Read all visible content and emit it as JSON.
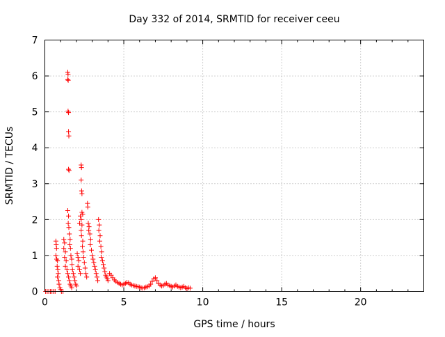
{
  "chart_data": {
    "type": "scatter",
    "title": "Day 332 of 2014, SRMTID for receiver ceeu",
    "xlabel": "GPS time / hours",
    "ylabel": "SRMTID / TECUs",
    "xlim": [
      0,
      24
    ],
    "ylim": [
      0,
      7
    ],
    "xticks": [
      0,
      5,
      10,
      15,
      20
    ],
    "yticks": [
      0,
      1,
      2,
      3,
      4,
      5,
      6,
      7
    ],
    "grid": true,
    "marker": "+",
    "series": [
      {
        "name": "SRMTID",
        "color": "#ff0000",
        "points": [
          [
            0.05,
            0
          ],
          [
            0.15,
            0
          ],
          [
            0.25,
            0
          ],
          [
            0.35,
            0
          ],
          [
            0.45,
            0
          ],
          [
            0.55,
            0
          ],
          [
            0.65,
            0
          ],
          [
            1.05,
            0
          ],
          [
            1.15,
            0
          ],
          [
            0.7,
            1.4
          ],
          [
            0.72,
            1.3
          ],
          [
            0.74,
            1.2
          ],
          [
            0.7,
            1.0
          ],
          [
            0.75,
            0.9
          ],
          [
            0.8,
            0.85
          ],
          [
            0.78,
            0.7
          ],
          [
            0.82,
            0.6
          ],
          [
            0.85,
            0.5
          ],
          [
            0.8,
            0.4
          ],
          [
            0.88,
            0.3
          ],
          [
            0.9,
            0.2
          ],
          [
            0.95,
            0.1
          ],
          [
            1.0,
            0.05
          ],
          [
            1.2,
            1.45
          ],
          [
            1.25,
            1.35
          ],
          [
            1.2,
            1.2
          ],
          [
            1.3,
            1.1
          ],
          [
            1.25,
            0.95
          ],
          [
            1.35,
            0.85
          ],
          [
            1.3,
            0.7
          ],
          [
            1.4,
            0.6
          ],
          [
            1.45,
            0.5
          ],
          [
            1.5,
            0.4
          ],
          [
            1.55,
            0.3
          ],
          [
            1.6,
            0.2
          ],
          [
            1.65,
            0.15
          ],
          [
            1.7,
            0.1
          ],
          [
            1.45,
            6.1
          ],
          [
            1.47,
            6.05
          ],
          [
            1.45,
            5.9
          ],
          [
            1.48,
            5.88
          ],
          [
            1.47,
            5.02
          ],
          [
            1.5,
            4.98
          ],
          [
            1.5,
            4.45
          ],
          [
            1.52,
            4.33
          ],
          [
            1.5,
            3.4
          ],
          [
            1.53,
            3.37
          ],
          [
            1.45,
            2.25
          ],
          [
            1.5,
            2.1
          ],
          [
            1.48,
            1.9
          ],
          [
            1.52,
            1.78
          ],
          [
            1.55,
            1.6
          ],
          [
            1.6,
            1.45
          ],
          [
            1.58,
            1.3
          ],
          [
            1.62,
            1.2
          ],
          [
            1.65,
            1.0
          ],
          [
            1.7,
            0.9
          ],
          [
            1.72,
            0.75
          ],
          [
            1.75,
            0.6
          ],
          [
            1.8,
            0.5
          ],
          [
            1.85,
            0.4
          ],
          [
            1.9,
            0.3
          ],
          [
            1.95,
            0.2
          ],
          [
            2.0,
            0.15
          ],
          [
            2.05,
            1.05
          ],
          [
            2.1,
            0.95
          ],
          [
            2.15,
            0.85
          ],
          [
            2.1,
            0.7
          ],
          [
            2.2,
            0.6
          ],
          [
            2.25,
            0.5
          ],
          [
            2.25,
            2.1
          ],
          [
            2.3,
            2.0
          ],
          [
            2.2,
            1.9
          ],
          [
            2.35,
            1.85
          ],
          [
            2.3,
            1.7
          ],
          [
            2.32,
            1.55
          ],
          [
            2.4,
            1.4
          ],
          [
            2.38,
            1.25
          ],
          [
            2.42,
            1.1
          ],
          [
            2.45,
            0.95
          ],
          [
            2.5,
            0.8
          ],
          [
            2.55,
            0.65
          ],
          [
            2.6,
            0.5
          ],
          [
            2.65,
            0.4
          ],
          [
            2.3,
            3.52
          ],
          [
            2.32,
            3.45
          ],
          [
            2.3,
            3.1
          ],
          [
            2.33,
            2.8
          ],
          [
            2.35,
            2.72
          ],
          [
            2.35,
            2.2
          ],
          [
            2.4,
            2.15
          ],
          [
            2.7,
            2.45
          ],
          [
            2.72,
            2.35
          ],
          [
            2.75,
            1.9
          ],
          [
            2.8,
            1.8
          ],
          [
            2.78,
            1.7
          ],
          [
            2.85,
            1.6
          ],
          [
            2.9,
            1.45
          ],
          [
            2.88,
            1.3
          ],
          [
            2.95,
            1.15
          ],
          [
            3.0,
            1.0
          ],
          [
            3.05,
            0.9
          ],
          [
            3.1,
            0.8
          ],
          [
            3.15,
            0.7
          ],
          [
            3.2,
            0.6
          ],
          [
            3.25,
            0.5
          ],
          [
            3.3,
            0.4
          ],
          [
            3.35,
            0.3
          ],
          [
            3.4,
            2.0
          ],
          [
            3.45,
            1.85
          ],
          [
            3.42,
            1.7
          ],
          [
            3.5,
            1.55
          ],
          [
            3.48,
            1.4
          ],
          [
            3.55,
            1.25
          ],
          [
            3.6,
            1.1
          ],
          [
            3.58,
            0.95
          ],
          [
            3.65,
            0.85
          ],
          [
            3.7,
            0.75
          ],
          [
            3.75,
            0.65
          ],
          [
            3.8,
            0.55
          ],
          [
            3.85,
            0.45
          ],
          [
            3.9,
            0.4
          ],
          [
            3.95,
            0.35
          ],
          [
            4.0,
            0.3
          ],
          [
            4.1,
            0.5
          ],
          [
            4.2,
            0.45
          ],
          [
            4.3,
            0.38
          ],
          [
            4.4,
            0.32
          ],
          [
            4.5,
            0.28
          ],
          [
            4.6,
            0.25
          ],
          [
            4.7,
            0.22
          ],
          [
            4.8,
            0.2
          ],
          [
            4.9,
            0.18
          ],
          [
            5.0,
            0.2
          ],
          [
            5.1,
            0.22
          ],
          [
            5.2,
            0.25
          ],
          [
            5.3,
            0.24
          ],
          [
            5.4,
            0.2
          ],
          [
            5.5,
            0.18
          ],
          [
            5.6,
            0.16
          ],
          [
            5.7,
            0.15
          ],
          [
            5.8,
            0.14
          ],
          [
            5.9,
            0.13
          ],
          [
            6.0,
            0.12
          ],
          [
            6.1,
            0.1
          ],
          [
            6.2,
            0.09
          ],
          [
            6.3,
            0.1
          ],
          [
            6.4,
            0.12
          ],
          [
            6.5,
            0.13
          ],
          [
            6.6,
            0.15
          ],
          [
            6.7,
            0.2
          ],
          [
            6.8,
            0.28
          ],
          [
            6.9,
            0.35
          ],
          [
            7.0,
            0.38
          ],
          [
            7.1,
            0.3
          ],
          [
            7.2,
            0.22
          ],
          [
            7.3,
            0.18
          ],
          [
            7.4,
            0.15
          ],
          [
            7.5,
            0.16
          ],
          [
            7.6,
            0.2
          ],
          [
            7.7,
            0.22
          ],
          [
            7.8,
            0.18
          ],
          [
            7.9,
            0.16
          ],
          [
            8.0,
            0.14
          ],
          [
            8.1,
            0.12
          ],
          [
            8.2,
            0.15
          ],
          [
            8.3,
            0.18
          ],
          [
            8.4,
            0.14
          ],
          [
            8.5,
            0.12
          ],
          [
            8.6,
            0.1
          ],
          [
            8.7,
            0.12
          ],
          [
            8.8,
            0.14
          ],
          [
            8.9,
            0.1
          ],
          [
            9.0,
            0.08
          ],
          [
            9.1,
            0.1
          ],
          [
            9.2,
            0.09
          ]
        ]
      }
    ]
  }
}
